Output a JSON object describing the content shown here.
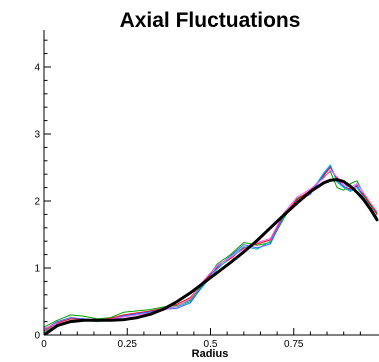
{
  "chart_data": {
    "type": "line",
    "title": "Axial Fluctuations",
    "xlabel": "Radius",
    "ylabel": "",
    "xlim": [
      0,
      1.0
    ],
    "ylim": [
      0,
      4.5
    ],
    "x_ticks": [
      0,
      0.25,
      0.5,
      0.75
    ],
    "x_tick_labels": [
      "0",
      "0.25",
      "0.5",
      "0.75"
    ],
    "y_ticks": [
      0,
      1,
      2,
      3,
      4
    ],
    "y_tick_labels": [
      "0",
      "1",
      "2",
      "3",
      "4"
    ],
    "grid": false,
    "legend": "none",
    "x": [
      0.0,
      0.04,
      0.08,
      0.12,
      0.16,
      0.2,
      0.24,
      0.28,
      0.32,
      0.36,
      0.4,
      0.44,
      0.48,
      0.52,
      0.56,
      0.6,
      0.64,
      0.68,
      0.72,
      0.76,
      0.8,
      0.84,
      0.86,
      0.88,
      0.9,
      0.92,
      0.94,
      0.96,
      0.98,
      1.0
    ],
    "series": [
      {
        "color": "#000000",
        "width": 3,
        "values": [
          0.0,
          0.14,
          0.2,
          0.22,
          0.22,
          0.22,
          0.23,
          0.26,
          0.31,
          0.39,
          0.5,
          0.63,
          0.78,
          0.93,
          1.08,
          1.24,
          1.41,
          1.6,
          1.79,
          1.97,
          2.14,
          2.27,
          2.31,
          2.32,
          2.29,
          2.22,
          2.13,
          2.02,
          1.88,
          1.72
        ]
      },
      {
        "color": "#00a000",
        "width": 1,
        "values": [
          0.12,
          0.22,
          0.3,
          0.28,
          0.24,
          0.26,
          0.34,
          0.36,
          0.38,
          0.42,
          0.44,
          0.52,
          0.78,
          1.06,
          1.2,
          1.38,
          1.34,
          1.38,
          1.74,
          2.04,
          2.14,
          2.36,
          2.44,
          2.2,
          2.16,
          2.26,
          2.3,
          2.1,
          1.96,
          1.82
        ]
      },
      {
        "color": "#ff0000",
        "width": 1,
        "values": [
          0.06,
          0.18,
          0.24,
          0.24,
          0.22,
          0.25,
          0.3,
          0.33,
          0.36,
          0.4,
          0.46,
          0.56,
          0.8,
          1.0,
          1.14,
          1.3,
          1.36,
          1.42,
          1.8,
          2.02,
          2.16,
          2.38,
          2.5,
          2.34,
          2.2,
          2.18,
          2.22,
          2.08,
          1.94,
          1.8
        ]
      },
      {
        "color": "#00c0c0",
        "width": 1,
        "values": [
          0.04,
          0.16,
          0.22,
          0.22,
          0.2,
          0.22,
          0.28,
          0.31,
          0.34,
          0.4,
          0.42,
          0.5,
          0.74,
          0.98,
          1.16,
          1.32,
          1.28,
          1.4,
          1.76,
          2.0,
          2.12,
          2.42,
          2.54,
          2.28,
          2.2,
          2.14,
          2.2,
          2.06,
          1.92,
          1.76
        ]
      },
      {
        "color": "#4060ff",
        "width": 1,
        "values": [
          0.08,
          0.2,
          0.26,
          0.24,
          0.21,
          0.23,
          0.29,
          0.32,
          0.35,
          0.38,
          0.4,
          0.48,
          0.76,
          1.02,
          1.18,
          1.35,
          1.3,
          1.36,
          1.78,
          2.0,
          2.1,
          2.4,
          2.52,
          2.3,
          2.22,
          2.16,
          2.24,
          2.04,
          1.9,
          1.74
        ]
      },
      {
        "color": "#ff60ff",
        "width": 1,
        "values": [
          0.1,
          0.17,
          0.21,
          0.22,
          0.23,
          0.24,
          0.27,
          0.3,
          0.33,
          0.37,
          0.43,
          0.54,
          0.82,
          1.04,
          1.16,
          1.28,
          1.38,
          1.44,
          1.82,
          2.06,
          2.18,
          2.34,
          2.46,
          2.36,
          2.24,
          2.2,
          2.26,
          2.12,
          1.98,
          1.84
        ]
      }
    ]
  }
}
